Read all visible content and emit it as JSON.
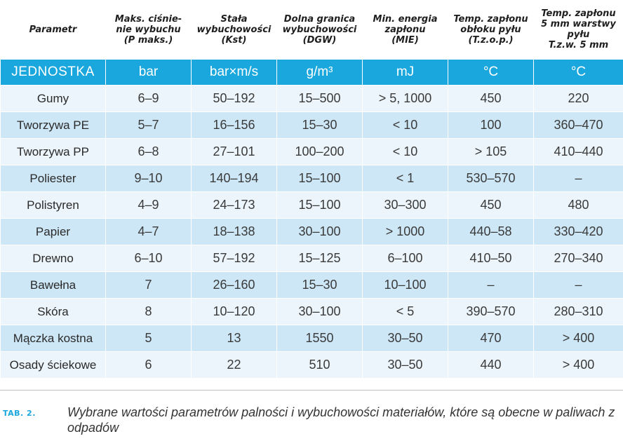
{
  "table": {
    "headers": [
      [
        "Parametr"
      ],
      [
        "Maks. ciśnie-",
        "nie wybuchu",
        "(P maks.)"
      ],
      [
        "Stała",
        "wybuchowości",
        "(Kst)"
      ],
      [
        "Dolna granica",
        "wybuchowości",
        "(DGW)"
      ],
      [
        "Min. energia",
        "zapłonu",
        "(MIE)"
      ],
      [
        "Temp. zapłonu",
        "obłoku pyłu",
        "(T.z.o.p.)"
      ],
      [
        "Temp. zapłonu",
        "5 mm warstwy",
        "pyłu",
        "T.z.w. 5 mm"
      ]
    ],
    "units": [
      "JEDNOSTKA",
      "bar",
      "bar×m/s",
      "g/m³",
      "mJ",
      "°C",
      "°C"
    ],
    "rows": [
      [
        "Gumy",
        "6–9",
        "50–192",
        "15–500",
        "> 5, 1000",
        "450",
        "220"
      ],
      [
        "Tworzywa PE",
        "5–7",
        "16–156",
        "15–30",
        "< 10",
        "100",
        "360–470"
      ],
      [
        "Tworzywa PP",
        "6–8",
        "27–101",
        "100–200",
        "< 10",
        "> 105",
        "410–440"
      ],
      [
        "Poliester",
        "9–10",
        "140–194",
        "15–100",
        "< 1",
        "530–570",
        "–"
      ],
      [
        "Polistyren",
        "4–9",
        "24–173",
        "15–100",
        "30–300",
        "450",
        "480"
      ],
      [
        "Papier",
        "4–7",
        "18–138",
        "30–100",
        "> 1000",
        "440–58",
        "330–420"
      ],
      [
        "Drewno",
        "6–10",
        "57–192",
        "15–125",
        "6–100",
        "410–50",
        "270–340"
      ],
      [
        "Bawełna",
        "7",
        "26–160",
        "15–30",
        "10–100",
        "–",
        "–"
      ],
      [
        "Skóra",
        "8",
        "10–120",
        "30–100",
        "< 5",
        "390–570",
        "280–310"
      ],
      [
        "Mączka kostna",
        "5",
        "13",
        "1550",
        "30–50",
        "470",
        "> 400"
      ],
      [
        "Osady ściekowe",
        "6",
        "22",
        "510",
        "30–50",
        "440",
        "> 400"
      ]
    ]
  },
  "caption": {
    "label": "TAB. 2.",
    "text": "Wybrane wartości parametrów palności i wybuchowości materiałów, które są obecne w paliwach z odpadów"
  },
  "colors": {
    "unit_row_bg": "#1aa7dd",
    "row_light": "#ecf5fb",
    "row_dark": "#cde7f6",
    "label_accent": "#1aa7dd"
  }
}
